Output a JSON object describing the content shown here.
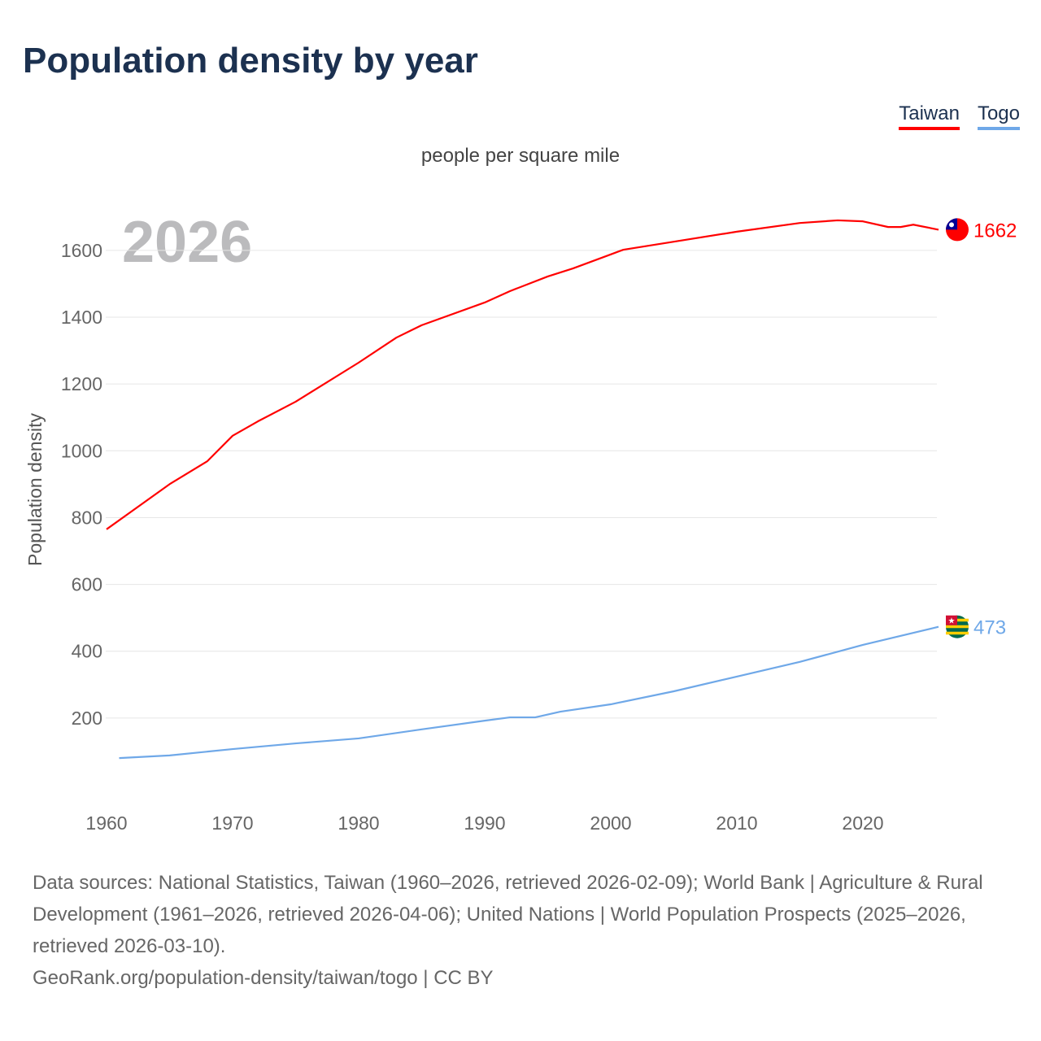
{
  "title": "Population density by year",
  "subtitle": "people per square mile",
  "sources": "Data sources: National Statistics, Taiwan (1960–2026, retrieved 2026-02-09); World Bank | Agriculture & Rural Development (1961–2026, retrieved 2026-04-06); United Nations | World Population Prospects (2025–2026, retrieved 2026-03-10).",
  "footer": "GeoRank.org/population-density/taiwan/togo | CC BY",
  "chart_data": {
    "type": "line",
    "title": "Population density by year",
    "ylabel": "Population density",
    "xlabel": "",
    "year_watermark": "2026",
    "xlim": [
      1960,
      2026
    ],
    "ylim": [
      0,
      1700
    ],
    "xticks": [
      1960,
      1970,
      1980,
      1990,
      2000,
      2010,
      2020
    ],
    "yticks": [
      200,
      400,
      600,
      800,
      1000,
      1200,
      1400,
      1600
    ],
    "legend_position": "top-right",
    "series": [
      {
        "name": "Taiwan",
        "color": "#ff0000",
        "end_label": "1662",
        "x": [
          1960,
          1965,
          1968,
          1970,
          1972,
          1975,
          1980,
          1983,
          1985,
          1990,
          1992,
          1995,
          1997,
          2000,
          2001,
          2005,
          2010,
          2015,
          2018,
          2020,
          2022,
          2023,
          2024,
          2026
        ],
        "y": [
          765,
          900,
          969,
          1045,
          1088,
          1147,
          1264,
          1339,
          1376,
          1444,
          1478,
          1522,
          1546,
          1588,
          1602,
          1626,
          1656,
          1682,
          1690,
          1687,
          1670,
          1670,
          1677,
          1662
        ]
      },
      {
        "name": "Togo",
        "color": "#6fa8e8",
        "end_label": "473",
        "x": [
          1961,
          1965,
          1970,
          1975,
          1980,
          1985,
          1990,
          1992,
          1994,
          1996,
          2000,
          2005,
          2010,
          2015,
          2020,
          2026
        ],
        "y": [
          80,
          88,
          107,
          124,
          139,
          166,
          192,
          202,
          202,
          219,
          241,
          280,
          324,
          368,
          419,
          473
        ]
      }
    ]
  }
}
